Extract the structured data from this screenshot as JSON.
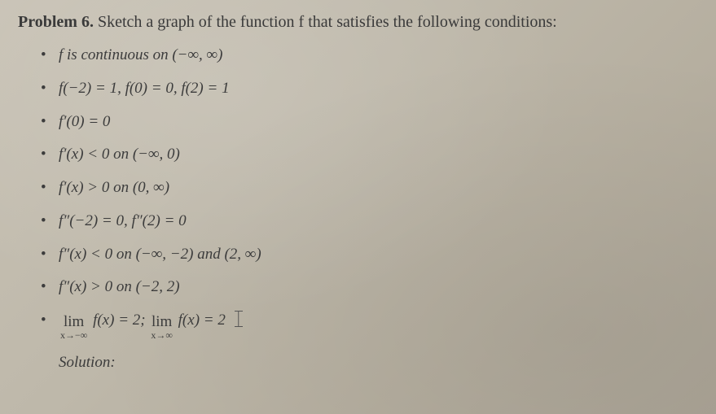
{
  "header": {
    "label": "Problem 6.",
    "text": "Sketch a graph of the function f that satisfies the following conditions:"
  },
  "conditions": {
    "c1": "f is continuous on (−∞, ∞)",
    "c2": "f(−2) = 1, f(0) = 0, f(2) = 1",
    "c3": "f′(0) = 0",
    "c4": "f′(x) < 0 on (−∞, 0)",
    "c5": "f′(x) > 0 on (0, ∞)",
    "c6": "f″(−2) = 0,  f″(2) = 0",
    "c7": "f″(x) < 0 on (−∞, −2) and (2, ∞)",
    "c8": "f″(x) > 0 on (−2, 2)",
    "lim": {
      "neg_sub": "x→−∞",
      "pos_sub": "x→∞",
      "lim_word": "lim",
      "body_neg": "f(x) = 2;",
      "body_pos": "f(x) = 2"
    }
  },
  "solution_label": "Solution:"
}
